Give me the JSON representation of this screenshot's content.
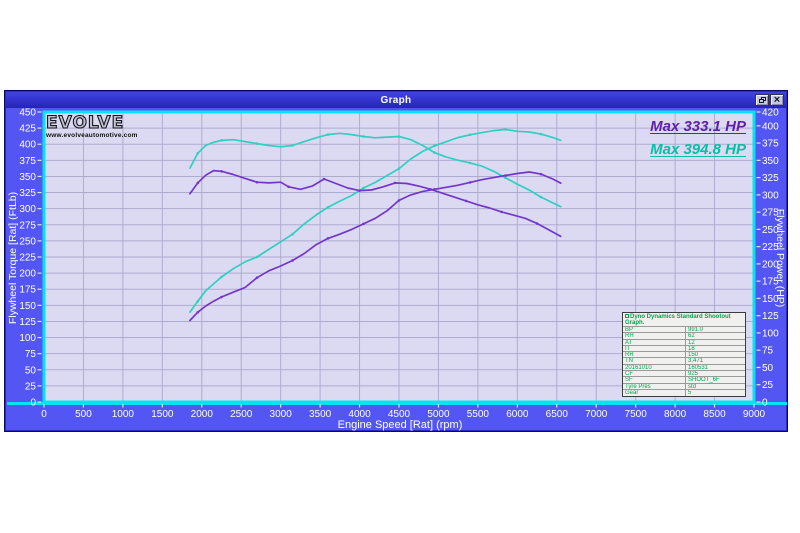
{
  "window": {
    "title": "Graph",
    "buttons": {
      "restore": "restore-window",
      "close": "close-window"
    }
  },
  "logo": {
    "text": "EVOLVE",
    "url": "www.evolveautomotive.com"
  },
  "annotations": {
    "run1_max": "Max 333.1 HP",
    "run2_max": "Max 394.8 HP"
  },
  "colors": {
    "client_bg": "#5356f2",
    "titlebar": "#2e2ec8",
    "plot_bg": "#dcdaf2",
    "grid": "#aeabd0",
    "frame_cyan": "#00e4f6",
    "tick": "#dfe0ff",
    "curve_cyan": "#2ed0bf",
    "curve_purple": "#7336c9",
    "max_purple_text": "#6020a8",
    "max_cyan_text": "#00c3a5",
    "info_green": "#00a550"
  },
  "chart_data": {
    "type": "line",
    "title": "Graph",
    "xlabel": "Engine Speed [Rat] (rpm)",
    "ylabel_left": "Flywheel Torque [Rat] (FtLb)",
    "ylabel_right": "Flywheel Power (HP)",
    "xlim": [
      0,
      9000
    ],
    "ylim_left": [
      0,
      450
    ],
    "ylim_right": [
      0,
      420
    ],
    "grid": true,
    "legend_position": "top-right",
    "x_ticks": [
      0,
      500,
      1000,
      1500,
      2000,
      2500,
      3000,
      3500,
      4000,
      4500,
      5000,
      5500,
      6000,
      6500,
      7000,
      7500,
      8000,
      8500,
      9000
    ],
    "y_left_ticks": [
      450,
      425,
      400,
      375,
      350,
      325,
      300,
      275,
      250,
      225,
      200,
      175,
      150,
      125,
      100,
      75,
      50,
      25,
      0
    ],
    "y_right_ticks": [
      420,
      400,
      375,
      350,
      325,
      300,
      275,
      250,
      225,
      200,
      175,
      150,
      125,
      100,
      75,
      50,
      25,
      0
    ],
    "series": [
      {
        "name": "run2_power_hp",
        "axis": "right",
        "color": "#2ed0bf",
        "max_value": 394.8,
        "points": [
          [
            1850,
            130
          ],
          [
            1950,
            146
          ],
          [
            2050,
            161
          ],
          [
            2150,
            171
          ],
          [
            2250,
            181
          ],
          [
            2400,
            193
          ],
          [
            2550,
            203
          ],
          [
            2700,
            210
          ],
          [
            2850,
            221
          ],
          [
            3000,
            232
          ],
          [
            3150,
            243
          ],
          [
            3300,
            258
          ],
          [
            3450,
            271
          ],
          [
            3600,
            282
          ],
          [
            3750,
            291
          ],
          [
            3900,
            299
          ],
          [
            4050,
            310
          ],
          [
            4200,
            318
          ],
          [
            4350,
            328
          ],
          [
            4500,
            338
          ],
          [
            4650,
            352
          ],
          [
            4800,
            363
          ],
          [
            4950,
            371
          ],
          [
            5100,
            377
          ],
          [
            5250,
            383
          ],
          [
            5400,
            387
          ],
          [
            5550,
            390
          ],
          [
            5700,
            393
          ],
          [
            5850,
            394.8
          ],
          [
            6000,
            392
          ],
          [
            6150,
            391
          ],
          [
            6300,
            388
          ],
          [
            6450,
            383
          ],
          [
            6550,
            379
          ]
        ]
      },
      {
        "name": "run2_torque_ftlb",
        "axis": "left",
        "color": "#2ed0bf",
        "points": [
          [
            1850,
            363
          ],
          [
            1950,
            386
          ],
          [
            2050,
            398
          ],
          [
            2150,
            403
          ],
          [
            2250,
            406
          ],
          [
            2400,
            407
          ],
          [
            2550,
            404
          ],
          [
            2700,
            401
          ],
          [
            2850,
            398
          ],
          [
            3000,
            396
          ],
          [
            3150,
            398
          ],
          [
            3300,
            404
          ],
          [
            3450,
            410
          ],
          [
            3600,
            415
          ],
          [
            3750,
            417
          ],
          [
            3900,
            415
          ],
          [
            4050,
            412
          ],
          [
            4200,
            410
          ],
          [
            4350,
            411
          ],
          [
            4500,
            412
          ],
          [
            4650,
            407
          ],
          [
            4800,
            398
          ],
          [
            4950,
            387
          ],
          [
            5100,
            380
          ],
          [
            5250,
            375
          ],
          [
            5400,
            371
          ],
          [
            5550,
            366
          ],
          [
            5700,
            358
          ],
          [
            5850,
            348
          ],
          [
            6000,
            338
          ],
          [
            6150,
            329
          ],
          [
            6300,
            318
          ],
          [
            6450,
            309
          ],
          [
            6550,
            303
          ]
        ]
      },
      {
        "name": "run1_power_hp",
        "axis": "right",
        "color": "#7336c9",
        "max_value": 333.1,
        "points": [
          [
            1850,
            118
          ],
          [
            1950,
            130
          ],
          [
            2050,
            139
          ],
          [
            2150,
            146
          ],
          [
            2250,
            152
          ],
          [
            2400,
            159
          ],
          [
            2550,
            166
          ],
          [
            2700,
            180
          ],
          [
            2850,
            190
          ],
          [
            3000,
            197
          ],
          [
            3150,
            205
          ],
          [
            3300,
            215
          ],
          [
            3450,
            228
          ],
          [
            3600,
            237
          ],
          [
            3750,
            243
          ],
          [
            3900,
            250
          ],
          [
            4050,
            258
          ],
          [
            4200,
            266
          ],
          [
            4350,
            277
          ],
          [
            4500,
            292
          ],
          [
            4650,
            300
          ],
          [
            4800,
            305
          ],
          [
            4950,
            308
          ],
          [
            5100,
            311
          ],
          [
            5250,
            314
          ],
          [
            5400,
            318
          ],
          [
            5550,
            322
          ],
          [
            5700,
            325
          ],
          [
            5850,
            328
          ],
          [
            6000,
            331
          ],
          [
            6150,
            333.1
          ],
          [
            6300,
            330
          ],
          [
            6450,
            323
          ],
          [
            6550,
            317
          ]
        ]
      },
      {
        "name": "run1_torque_ftlb",
        "axis": "left",
        "color": "#7336c9",
        "points": [
          [
            1850,
            323
          ],
          [
            1950,
            340
          ],
          [
            2050,
            352
          ],
          [
            2150,
            359
          ],
          [
            2250,
            358
          ],
          [
            2400,
            353
          ],
          [
            2550,
            347
          ],
          [
            2700,
            341
          ],
          [
            2850,
            340
          ],
          [
            3000,
            341
          ],
          [
            3100,
            334
          ],
          [
            3250,
            330
          ],
          [
            3400,
            335
          ],
          [
            3550,
            346
          ],
          [
            3700,
            339
          ],
          [
            3850,
            332
          ],
          [
            4000,
            328
          ],
          [
            4150,
            329
          ],
          [
            4300,
            334
          ],
          [
            4450,
            340
          ],
          [
            4600,
            339
          ],
          [
            4750,
            335
          ],
          [
            4900,
            330
          ],
          [
            5050,
            324
          ],
          [
            5200,
            318
          ],
          [
            5350,
            312
          ],
          [
            5500,
            306
          ],
          [
            5650,
            301
          ],
          [
            5800,
            295
          ],
          [
            5950,
            290
          ],
          [
            6100,
            285
          ],
          [
            6250,
            277
          ],
          [
            6400,
            267
          ],
          [
            6550,
            257
          ]
        ]
      }
    ]
  },
  "info_table": {
    "header": "Dyno Dynamics Standard Shootout Graph.",
    "rows": [
      [
        "BP",
        "991.0"
      ],
      [
        "RH",
        "62"
      ],
      [
        "AT",
        "12"
      ],
      [
        "IT",
        "18"
      ],
      [
        "RR",
        "150"
      ],
      [
        "TN",
        "3.471"
      ],
      [
        "20161010",
        "160531"
      ],
      [
        "CF",
        "925"
      ],
      [
        "SF",
        "SHOOT_6F"
      ],
      [
        "Tyre Pres",
        "std"
      ],
      [
        "Gear",
        "5"
      ]
    ]
  }
}
